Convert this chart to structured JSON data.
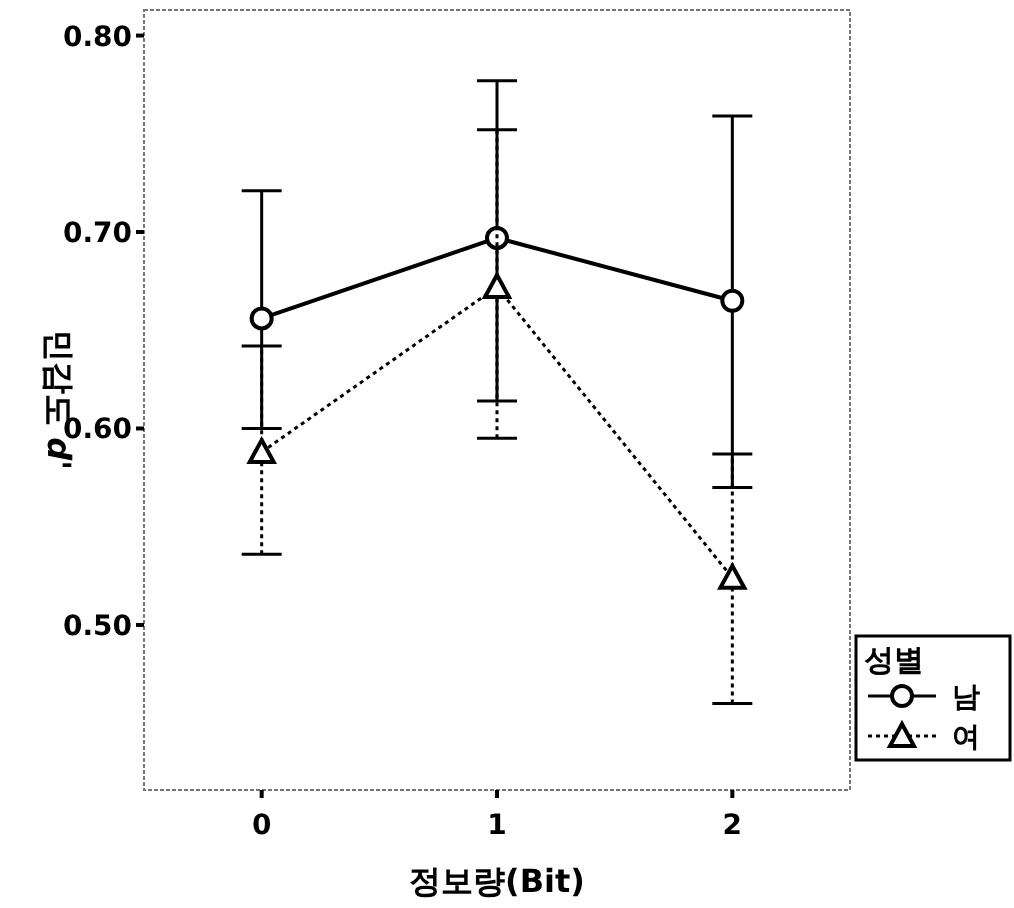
{
  "chart_data": {
    "type": "line",
    "xlabel": "정보량(Bit)",
    "ylabel": "민감도 *d'*",
    "legend_title": "성별",
    "legend": "bottom right",
    "x": [
      0,
      1,
      2
    ],
    "xlim": [
      -0.5,
      2.5
    ],
    "xticks": [
      0,
      1,
      2
    ],
    "ylim": [
      0.416,
      0.813
    ],
    "yticks": [
      {
        "value": 0.5,
        "label": "0.50"
      },
      {
        "value": 0.6,
        "label": "0.60"
      },
      {
        "value": 0.7,
        "label": "0.70"
      },
      {
        "value": 0.8,
        "label": "0.80"
      }
    ],
    "series": [
      {
        "name": "남",
        "color": "#000000",
        "marker": "circle",
        "line_style": "solid",
        "values": [
          0.656,
          0.697,
          0.665
        ],
        "errors": [
          [
            0.6,
            0.721
          ],
          [
            0.614,
            0.777
          ],
          [
            0.57,
            0.759
          ]
        ]
      },
      {
        "name": "여",
        "color": "#000000",
        "marker": "triangle",
        "line_style": "dotted",
        "values": [
          0.588,
          0.672,
          0.524
        ],
        "errors": [
          [
            0.536,
            0.642
          ],
          [
            0.595,
            0.752
          ],
          [
            0.46,
            0.587
          ]
        ]
      }
    ]
  }
}
